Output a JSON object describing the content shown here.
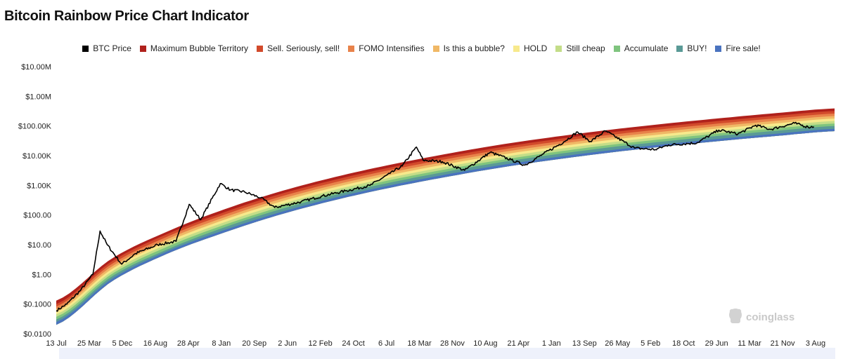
{
  "page": {
    "title": "Bitcoin Rainbow Price Chart Indicator"
  },
  "watermark": {
    "text": "coinglass",
    "icon": "coinglass-logo-icon"
  },
  "chart_data": {
    "type": "area",
    "title": "Bitcoin Rainbow Price Chart Indicator",
    "y_scale": "log",
    "ylim": [
      0.01,
      10000000
    ],
    "y_ticks": [
      {
        "value": 10000000,
        "label": "$10.00M"
      },
      {
        "value": 1000000,
        "label": "$1.00M"
      },
      {
        "value": 100000,
        "label": "$100.00K"
      },
      {
        "value": 10000,
        "label": "$10.00K"
      },
      {
        "value": 1000,
        "label": "$1.00K"
      },
      {
        "value": 100,
        "label": "$100.00"
      },
      {
        "value": 10,
        "label": "$10.00"
      },
      {
        "value": 1,
        "label": "$1.00"
      },
      {
        "value": 0.1,
        "label": "$0.1000"
      },
      {
        "value": 0.01,
        "label": "$0.0100"
      }
    ],
    "x_ticks": [
      "13 Jul",
      "25 Mar",
      "5 Dec",
      "16 Aug",
      "28 Apr",
      "8 Jan",
      "20 Sep",
      "2 Jun",
      "12 Feb",
      "24 Oct",
      "6 Jul",
      "18 Mar",
      "28 Nov",
      "10 Aug",
      "21 Apr",
      "1 Jan",
      "13 Sep",
      "26 May",
      "5 Feb",
      "18 Oct",
      "29 Jun",
      "11 Mar",
      "21 Nov",
      "3 Aug"
    ],
    "x_range": [
      "2010-07-13",
      "2026-08-03"
    ],
    "grid": false,
    "legend_position": "top-center",
    "legend": [
      {
        "name": "BTC Price",
        "color": "#000000"
      },
      {
        "name": "Maximum Bubble Territory",
        "color": "#b0211c"
      },
      {
        "name": "Sell. Seriously, sell!",
        "color": "#d24a2b"
      },
      {
        "name": "FOMO Intensifies",
        "color": "#e8824a"
      },
      {
        "name": "Is this a bubble?",
        "color": "#f0b866"
      },
      {
        "name": "HOLD",
        "color": "#f7e98c"
      },
      {
        "name": "Still cheap",
        "color": "#c3dd88"
      },
      {
        "name": "Accumulate",
        "color": "#7fc47e"
      },
      {
        "name": "BUY!",
        "color": "#5a9a96"
      },
      {
        "name": "Fire sale!",
        "color": "#4a73bf"
      }
    ],
    "bands": [
      {
        "name": "Fire sale!",
        "upper": [
          0.025,
          0.7,
          6,
          30,
          120,
          380,
          1000,
          2300,
          4800,
          9000,
          15500,
          25000,
          38000,
          56000,
          80000
        ]
      },
      {
        "name": "BUY!",
        "upper": [
          0.03,
          0.85,
          7,
          37,
          150,
          470,
          1230,
          2850,
          6000,
          11200,
          19500,
          31000,
          48000,
          70000,
          100000
        ]
      },
      {
        "name": "Accumulate",
        "upper": [
          0.037,
          1.03,
          8.6,
          45,
          180,
          570,
          1500,
          3450,
          7200,
          13500,
          23500,
          37500,
          58000,
          85000,
          121000
        ]
      },
      {
        "name": "Still cheap",
        "upper": [
          0.045,
          1.25,
          10.5,
          55,
          220,
          700,
          1820,
          4200,
          8800,
          16500,
          28500,
          45500,
          70000,
          103000,
          147000
        ]
      },
      {
        "name": "HOLD",
        "upper": [
          0.055,
          1.52,
          12.7,
          67,
          270,
          850,
          2210,
          5100,
          10700,
          20000,
          34500,
          55000,
          85000,
          125000,
          178000
        ]
      },
      {
        "name": "Is this a bubble?",
        "upper": [
          0.068,
          1.85,
          15.5,
          81,
          330,
          1030,
          2690,
          6200,
          13000,
          24300,
          42000,
          67000,
          103000,
          152000,
          216000
        ]
      },
      {
        "name": "FOMO Intensifies",
        "upper": [
          0.083,
          2.25,
          18.8,
          99,
          400,
          1250,
          3270,
          7550,
          15800,
          29500,
          51000,
          81500,
          125000,
          185000,
          262000
        ]
      },
      {
        "name": "Sell. Seriously, sell!",
        "upper": [
          0.1,
          2.75,
          23,
          120,
          490,
          1520,
          3970,
          9200,
          19200,
          35900,
          62000,
          99000,
          152000,
          225000,
          318000
        ]
      },
      {
        "name": "Maximum Bubble Territory",
        "upper": [
          0.13,
          3.4,
          28,
          150,
          600,
          1880,
          4900,
          11300,
          23700,
          44000,
          76000,
          122000,
          187000,
          277000,
          390000
        ]
      }
    ],
    "band_floor": [
      0.02,
      0.58,
      5,
      25,
      100,
      315,
      830,
      1900,
      4000,
      7500,
      13000,
      21000,
      32000,
      47000,
      67000
    ],
    "band_x": [
      0,
      0.0714,
      0.1429,
      0.2143,
      0.2857,
      0.3571,
      0.4286,
      0.5,
      0.5714,
      0.6429,
      0.7143,
      0.7857,
      0.8571,
      0.9286,
      1
    ],
    "series": [
      {
        "name": "BTC Price",
        "color": "#000000",
        "x": [
          "2010-07-13",
          "2010-10-01",
          "2011-01-15",
          "2011-04-15",
          "2011-06-08",
          "2011-08-01",
          "2011-11-18",
          "2012-03-01",
          "2012-08-15",
          "2013-01-01",
          "2013-04-10",
          "2013-07-05",
          "2013-11-30",
          "2014-02-15",
          "2014-06-01",
          "2014-10-01",
          "2015-01-14",
          "2015-08-01",
          "2016-01-01",
          "2016-07-01",
          "2017-01-01",
          "2017-06-01",
          "2017-09-01",
          "2017-12-17",
          "2018-02-06",
          "2018-06-30",
          "2018-12-15",
          "2019-06-26",
          "2019-12-01",
          "2020-03-13",
          "2020-08-01",
          "2020-12-31",
          "2021-04-14",
          "2021-07-20",
          "2021-11-10",
          "2022-06-18",
          "2022-11-21",
          "2023-03-01",
          "2023-10-01",
          "2024-03-14",
          "2024-08-05",
          "2024-12-17",
          "2025-04-07",
          "2025-10-06",
          "2026-01-15",
          "2026-03-01"
        ],
        "y": [
          0.06,
          0.1,
          0.3,
          1.0,
          29,
          10,
          2.2,
          5,
          10,
          13,
          230,
          70,
          1150,
          700,
          600,
          380,
          180,
          280,
          430,
          650,
          990,
          2500,
          4500,
          19500,
          7000,
          6300,
          3200,
          13000,
          7200,
          4800,
          11500,
          29000,
          63000,
          30000,
          68000,
          18000,
          16000,
          23000,
          27000,
          73000,
          54000,
          106000,
          77000,
          124000,
          92000,
          95000
        ]
      }
    ]
  }
}
